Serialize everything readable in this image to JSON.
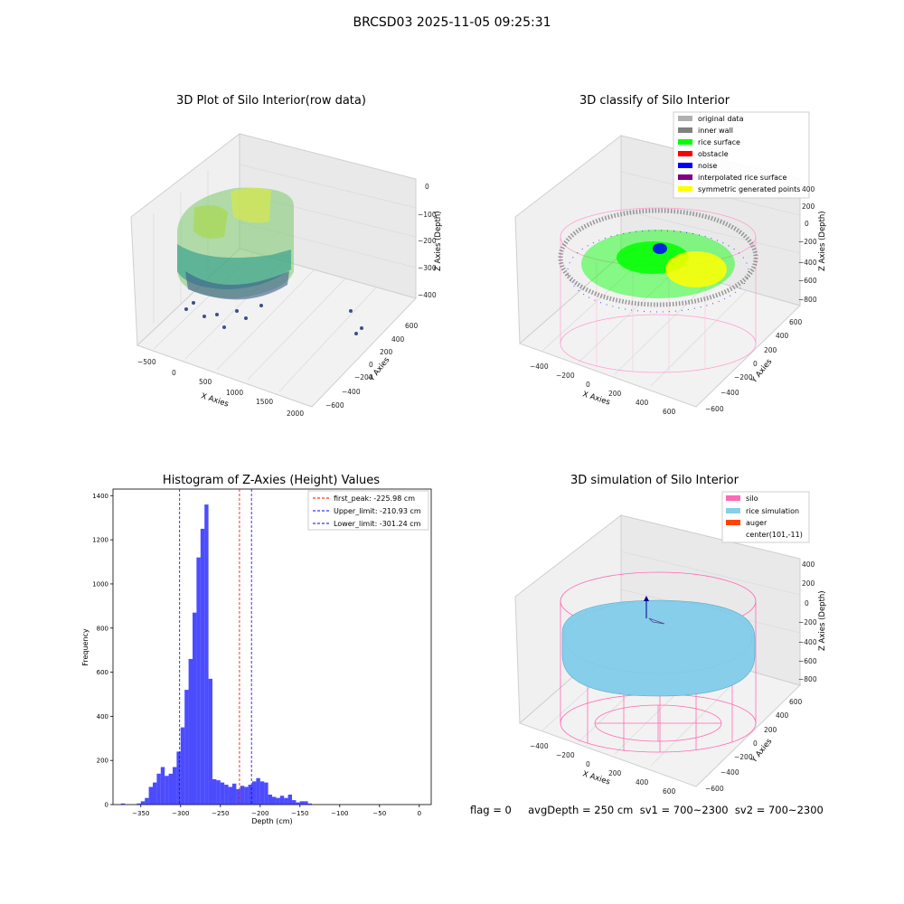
{
  "suptitle": "BRCSD03 2025-11-05 09:25:31",
  "panel1": {
    "title": "3D Plot of Silo Interior(row data)",
    "xlabel": "X Axies",
    "ylabel": "Y Axies",
    "zlabel": "Z Axies (Depth)",
    "xticks": [
      "−500",
      "0",
      "500",
      "1000",
      "1500",
      "2000"
    ],
    "yticks": [
      "600",
      "400",
      "200",
      "0",
      "−200",
      "−400",
      "−600"
    ],
    "zticks": [
      "0",
      "−100",
      "−200",
      "−300",
      "−400"
    ]
  },
  "panel2": {
    "title": "3D classify of Silo Interior",
    "xlabel": "X Axies",
    "ylabel": "Y Axies",
    "zlabel": "Z Axies (Depth)",
    "xticks": [
      "−400",
      "−200",
      "0",
      "200",
      "400",
      "600"
    ],
    "yticks": [
      "600",
      "400",
      "200",
      "0",
      "−200",
      "−400",
      "−600"
    ],
    "zticks": [
      "400",
      "200",
      "0",
      "−200",
      "−400",
      "−600",
      "−800"
    ],
    "legend": [
      {
        "label": "original data",
        "color": "#b0b0b0"
      },
      {
        "label": "inner wall",
        "color": "#808080"
      },
      {
        "label": "rice surface",
        "color": "#00ff00"
      },
      {
        "label": "obstacle",
        "color": "#ff0000"
      },
      {
        "label": "noise",
        "color": "#0000ff"
      },
      {
        "label": "interpolated rice surface",
        "color": "#800080"
      },
      {
        "label": "symmetric generated points",
        "color": "#ffff00"
      }
    ]
  },
  "panel4": {
    "title": "3D simulation of Silo Interior",
    "xlabel": "X Axies",
    "ylabel": "Y Axies",
    "zlabel": "Z Axies (Depth)",
    "xticks": [
      "−400",
      "−200",
      "0",
      "200",
      "400",
      "600"
    ],
    "yticks": [
      "600",
      "400",
      "200",
      "0",
      "−200",
      "−400",
      "−600"
    ],
    "zticks": [
      "400",
      "200",
      "0",
      "−200",
      "−400",
      "−600",
      "−800"
    ],
    "legend": [
      {
        "label": "silo",
        "color": "#ff69b4"
      },
      {
        "label": "rice simulation",
        "color": "#87ceeb"
      },
      {
        "label": "auger",
        "color": "#ff4500"
      },
      {
        "label": "center(101,-11)",
        "color": ""
      }
    ]
  },
  "footer": "flag = 0     avgDepth = 250 cm  sv1 = 700~2300  sv2 = 700~2300",
  "chart_data": {
    "type": "bar",
    "title": "Histogram of Z-Axies (Height) Values",
    "xlabel": "Depth (cm)",
    "ylabel": "Frequency",
    "xlim": [
      -385,
      15
    ],
    "ylim": [
      0,
      1430
    ],
    "xticks": [
      -350,
      -300,
      -250,
      -200,
      -150,
      -100,
      -50,
      0
    ],
    "xtick_labels": [
      "−350",
      "−300",
      "−250",
      "−200",
      "−150",
      "−100",
      "−50",
      "0"
    ],
    "yticks": [
      0,
      200,
      400,
      600,
      800,
      1000,
      1200,
      1400
    ],
    "bar_color": "#0000ff",
    "bin_start": -375,
    "bin_width": 5,
    "values": [
      5,
      0,
      0,
      0,
      5,
      15,
      30,
      80,
      100,
      140,
      170,
      130,
      140,
      170,
      240,
      350,
      520,
      660,
      870,
      1120,
      1250,
      1360,
      570,
      115,
      110,
      100,
      90,
      80,
      95,
      70,
      85,
      80,
      90,
      105,
      120,
      105,
      100,
      45,
      35,
      30,
      40,
      30,
      45,
      20,
      10,
      15,
      15,
      5,
      0
    ],
    "vlines": [
      {
        "x": -225.98,
        "color": "#ff0000",
        "label": "first_peak: -225.98 cm"
      },
      {
        "x": -210.93,
        "color": "#0000ff",
        "label": "Upper_limit: -210.93 cm"
      },
      {
        "x": -301.24,
        "color": "#0000ff",
        "label": "Lower_limit: -301.24 cm"
      }
    ],
    "legend_position": "upper right"
  }
}
